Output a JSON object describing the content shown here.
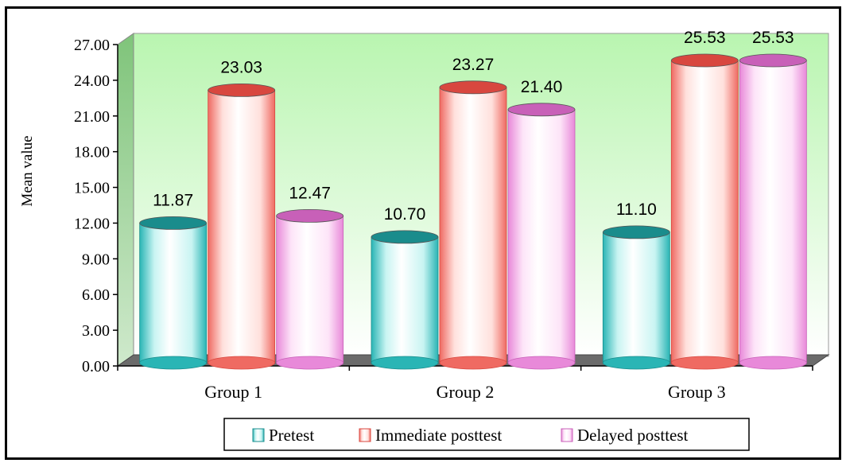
{
  "chart_data": {
    "type": "bar",
    "style": "3d-cylinder",
    "categories": [
      "Group 1",
      "Group 2",
      "Group 3"
    ],
    "series": [
      {
        "name": "Pretest",
        "values": [
          11.87,
          10.7,
          11.1
        ],
        "color": "#2ab5b5",
        "light": "#c8f4f2",
        "top": "#1a8c8c"
      },
      {
        "name": "Immediate posttest",
        "values": [
          23.03,
          23.27,
          25.53
        ],
        "color": "#ef6a62",
        "light": "#ffe0dc",
        "top": "#d8473f"
      },
      {
        "name": "Delayed posttest",
        "values": [
          12.47,
          21.4,
          25.53
        ],
        "color": "#e889d9",
        "light": "#fde4f8",
        "top": "#c860b8"
      }
    ],
    "data_labels": [
      [
        "11.87",
        "10.70",
        "11.10"
      ],
      [
        "23.03",
        "23.27",
        "25.53"
      ],
      [
        "12.47",
        "21.40",
        "25.53"
      ]
    ],
    "yticks": [
      "0.00",
      "3.00",
      "6.00",
      "9.00",
      "12.00",
      "15.00",
      "18.00",
      "21.00",
      "24.00",
      "27.00"
    ],
    "ylim": [
      0,
      27
    ],
    "ylabel": "Mean value",
    "xlabel": "",
    "legend_position": "bottom",
    "grid": false,
    "background_gradient": [
      "#b9f5b0",
      "#ffffff"
    ]
  }
}
